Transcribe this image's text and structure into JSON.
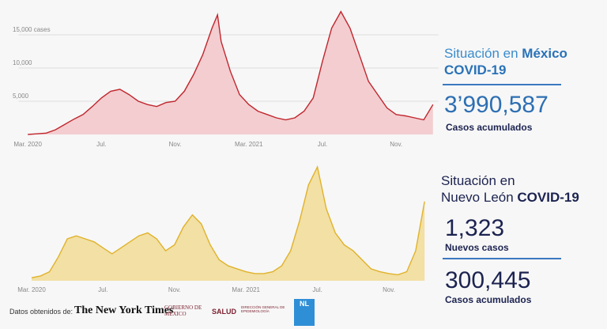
{
  "chart_data": [
    {
      "type": "area",
      "color": "#c0262d",
      "fill": "#f3cdd0",
      "x": [
        0,
        0.5,
        1,
        1.5,
        2,
        2.5,
        3,
        3.5,
        4,
        4.5,
        5,
        5.5,
        6,
        6.5,
        7,
        7.5,
        8,
        8.5,
        9,
        9.5,
        10,
        10.3,
        10.5,
        11,
        11.5,
        12,
        12.5,
        13,
        13.5,
        14,
        14.5,
        15,
        15.5,
        16,
        16.5,
        17,
        17.5,
        18,
        18.5,
        19,
        19.5,
        20,
        20.5,
        21,
        21.5,
        22
      ],
      "values": [
        0,
        100,
        200,
        700,
        1500,
        2300,
        3000,
        4200,
        5500,
        6500,
        6800,
        6000,
        5000,
        4500,
        4200,
        4800,
        5000,
        6500,
        9000,
        12000,
        16000,
        18000,
        14000,
        9500,
        6000,
        4500,
        3500,
        3000,
        2500,
        2200,
        2500,
        3500,
        5500,
        11000,
        16000,
        18500,
        16000,
        12000,
        8000,
        6000,
        4000,
        3000,
        2800,
        2500,
        2200,
        4500
      ],
      "xlim": [
        -0.5,
        22.3
      ],
      "xticks": [
        {
          "value": 0,
          "label": "Mar. 2020"
        },
        {
          "value": 4,
          "label": "Jul."
        },
        {
          "value": 8,
          "label": "Nov."
        },
        {
          "value": 12,
          "label": "Mar. 2021"
        },
        {
          "value": 16,
          "label": "Jul."
        },
        {
          "value": 20,
          "label": "Nov."
        }
      ],
      "ylim": [
        0,
        20000
      ],
      "yticks": [
        {
          "value": 5000,
          "label": "5,000"
        },
        {
          "value": 10000,
          "label": "10,000"
        },
        {
          "value": 15000,
          "label": "15,000 cases"
        }
      ],
      "grid": true
    },
    {
      "type": "area",
      "color": "#e0b22a",
      "fill": "#f2e0a4",
      "x": [
        0,
        0.5,
        1,
        1.5,
        2,
        2.5,
        3,
        3.5,
        4,
        4.5,
        5,
        5.5,
        6,
        6.5,
        7,
        7.5,
        8,
        8.5,
        9,
        9.5,
        10,
        10.5,
        11,
        11.5,
        12,
        12.5,
        13,
        13.5,
        14,
        14.5,
        15,
        15.5,
        16,
        16.5,
        17,
        17.5,
        18,
        18.5,
        19,
        19.5,
        20,
        20.5,
        21,
        21.5,
        22
      ],
      "values": [
        50,
        80,
        150,
        400,
        700,
        750,
        700,
        650,
        550,
        450,
        550,
        650,
        750,
        800,
        700,
        500,
        600,
        900,
        1100,
        950,
        600,
        350,
        250,
        200,
        150,
        120,
        120,
        150,
        250,
        500,
        1000,
        1600,
        1900,
        1200,
        800,
        600,
        500,
        350,
        200,
        150,
        120,
        100,
        150,
        500,
        1323
      ],
      "xlim": [
        -0.5,
        22.3
      ],
      "xticks": [
        {
          "value": 0,
          "label": "Mar. 2020"
        },
        {
          "value": 4,
          "label": "Jul."
        },
        {
          "value": 8,
          "label": "Nov."
        },
        {
          "value": 12,
          "label": "Mar. 2021"
        },
        {
          "value": 16,
          "label": "Jul."
        },
        {
          "value": 20,
          "label": "Nov."
        }
      ],
      "ylim": [
        0,
        2100
      ]
    }
  ],
  "panels": [
    {
      "title": [
        "Situación en ",
        "México",
        "COVID-19"
      ],
      "stats": [
        {
          "number": "3’990,587",
          "label": "Casos acumulados"
        }
      ]
    },
    {
      "title": [
        "Situación en",
        "Nuevo León ",
        "COVID-19"
      ],
      "stats": [
        {
          "number": "1,323",
          "label": "Nuevos casos"
        },
        {
          "number": "300,445",
          "label": "Casos acumulados"
        }
      ]
    }
  ],
  "footer": {
    "source": "Datos obtenidos de:",
    "nyt": "The New York Times",
    "gob": "GOBIERNO DE MÉXICO",
    "salud": "SALUD",
    "epi": "DIRECCIÓN GENERAL DE EPIDEMIOLOGÍA",
    "nl": "NL"
  }
}
